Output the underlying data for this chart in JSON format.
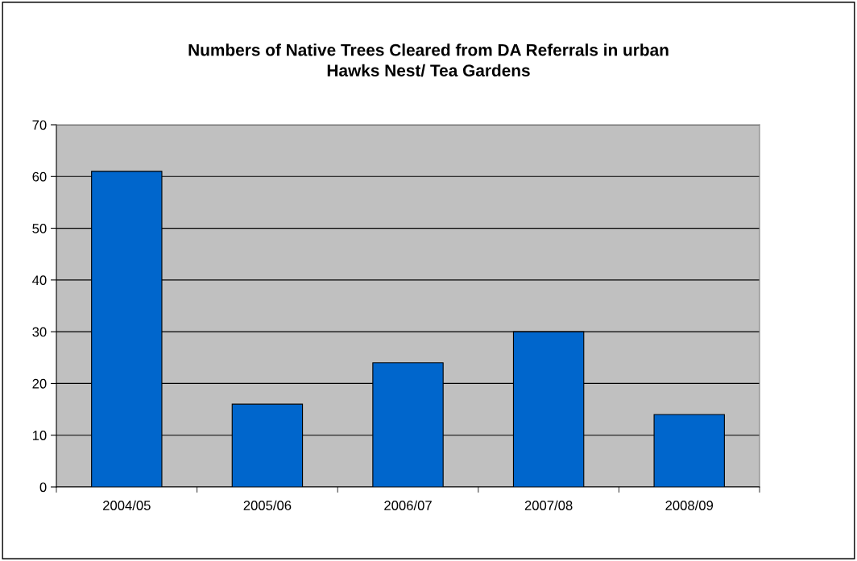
{
  "chart_data": {
    "type": "bar",
    "title": "Numbers of Native Trees Cleared from DA Referrals in urban\nHawks Nest/ Tea Gardens",
    "categories": [
      "2004/05",
      "2005/06",
      "2006/07",
      "2007/08",
      "2008/09"
    ],
    "values": [
      61,
      16,
      24,
      30,
      14
    ],
    "color": "#0066cc",
    "ylim": [
      0,
      70
    ],
    "yticks": [
      0,
      10,
      20,
      30,
      40,
      50,
      60,
      70
    ],
    "grid": "y",
    "legend": false
  }
}
